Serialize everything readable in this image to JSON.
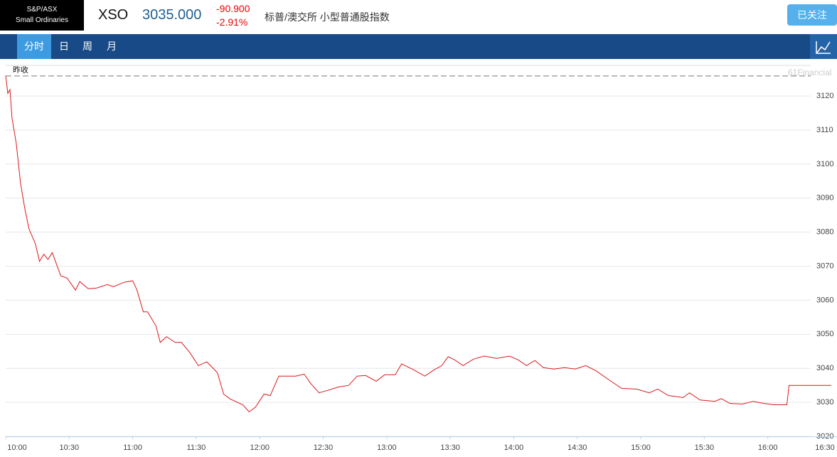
{
  "header": {
    "index_name": [
      "S&P/ASX",
      "Small Ordinaries"
    ],
    "symbol": "XSO",
    "price": "3035.000",
    "change": "-90.900",
    "change_pct": "-2.91%",
    "name": "标普/澳交所 小型普通股指数",
    "follow_button": "已关注"
  },
  "tabs": {
    "items": [
      "分时",
      "日",
      "周",
      "月"
    ],
    "active": 0
  },
  "chart_data": {
    "type": "line",
    "watermark": "61Financial",
    "prev_close_label": "昨收",
    "prev_close": 3125.9,
    "color": "#d9191c",
    "grid": true,
    "x": [
      "10:00",
      "10:01",
      "10:02",
      "10:03",
      "10:05",
      "10:07",
      "10:09",
      "10:11",
      "10:14",
      "10:16",
      "10:18",
      "10:20",
      "10:22",
      "10:26",
      "10:29",
      "10:33",
      "10:35",
      "10:39",
      "10:43",
      "10:48",
      "10:51",
      "10:56",
      "11:00",
      "11:02",
      "11:05",
      "11:07",
      "11:11",
      "11:13",
      "11:16",
      "11:20",
      "11:23",
      "11:27",
      "11:31",
      "11:35",
      "11:40",
      "11:43",
      "11:46",
      "11:52",
      "11:55",
      "11:58",
      "12:02",
      "12:05",
      "12:09",
      "12:13",
      "12:17",
      "12:21",
      "12:24",
      "12:28",
      "12:32",
      "12:37",
      "12:42",
      "12:46",
      "12:50",
      "12:55",
      "12:59",
      "13:04",
      "13:07",
      "13:12",
      "13:18",
      "13:22",
      "13:26",
      "13:29",
      "13:32",
      "13:36",
      "13:41",
      "13:46",
      "13:52",
      "13:58",
      "14:02",
      "14:06",
      "14:10",
      "14:14",
      "14:19",
      "14:24",
      "14:29",
      "14:34",
      "14:39",
      "14:45",
      "14:51",
      "14:58",
      "15:04",
      "15:08",
      "15:13",
      "15:20",
      "15:23",
      "15:28",
      "15:35",
      "15:38",
      "15:42",
      "15:48",
      "15:53",
      "15:58",
      "16:03",
      "16:09",
      "16:10",
      "16:30"
    ],
    "values": [
      3125.9,
      3120.8,
      3121.9,
      3113.5,
      3106,
      3094.5,
      3087,
      3081,
      3076.6,
      3071.4,
      3073.5,
      3072,
      3074,
      3067.2,
      3066.5,
      3063,
      3065.5,
      3063.4,
      3063.6,
      3064.6,
      3064,
      3065.3,
      3065.7,
      3063,
      3056.6,
      3056.6,
      3052.4,
      3047.6,
      3049.3,
      3047.6,
      3047.6,
      3044.6,
      3040.8,
      3041.9,
      3038.7,
      3032.4,
      3031,
      3029.3,
      3027.2,
      3028.6,
      3032.4,
      3032,
      3037.7,
      3037.7,
      3037.7,
      3038.3,
      3035.6,
      3032.8,
      3033.5,
      3034.5,
      3035,
      3037.7,
      3037.9,
      3036.2,
      3038.1,
      3038.1,
      3041.3,
      3039.8,
      3037.7,
      3039.4,
      3040.8,
      3043.4,
      3042.5,
      3040.8,
      3042.7,
      3043.6,
      3042.9,
      3043.6,
      3042.5,
      3040.8,
      3042.3,
      3040.2,
      3039.8,
      3040.2,
      3039.8,
      3040.8,
      3039.2,
      3036.6,
      3034.1,
      3033.9,
      3032.8,
      3033.9,
      3032,
      3031.4,
      3032.8,
      3030.7,
      3030.3,
      3031.1,
      3029.7,
      3029.5,
      3030.3,
      3029.7,
      3029.3,
      3029.3,
      3035,
      3035
    ],
    "xlim": [
      "10:00",
      "16:30"
    ],
    "xticks": [
      "10:00",
      "10:30",
      "11:00",
      "11:30",
      "12:00",
      "12:30",
      "13:00",
      "13:30",
      "14:00",
      "14:30",
      "15:00",
      "15:30",
      "16:00",
      "16:30"
    ],
    "ylim": [
      3020,
      3129
    ],
    "yticks": [
      3020,
      3030,
      3040,
      3050,
      3060,
      3070,
      3080,
      3090,
      3100,
      3110,
      3120
    ]
  }
}
